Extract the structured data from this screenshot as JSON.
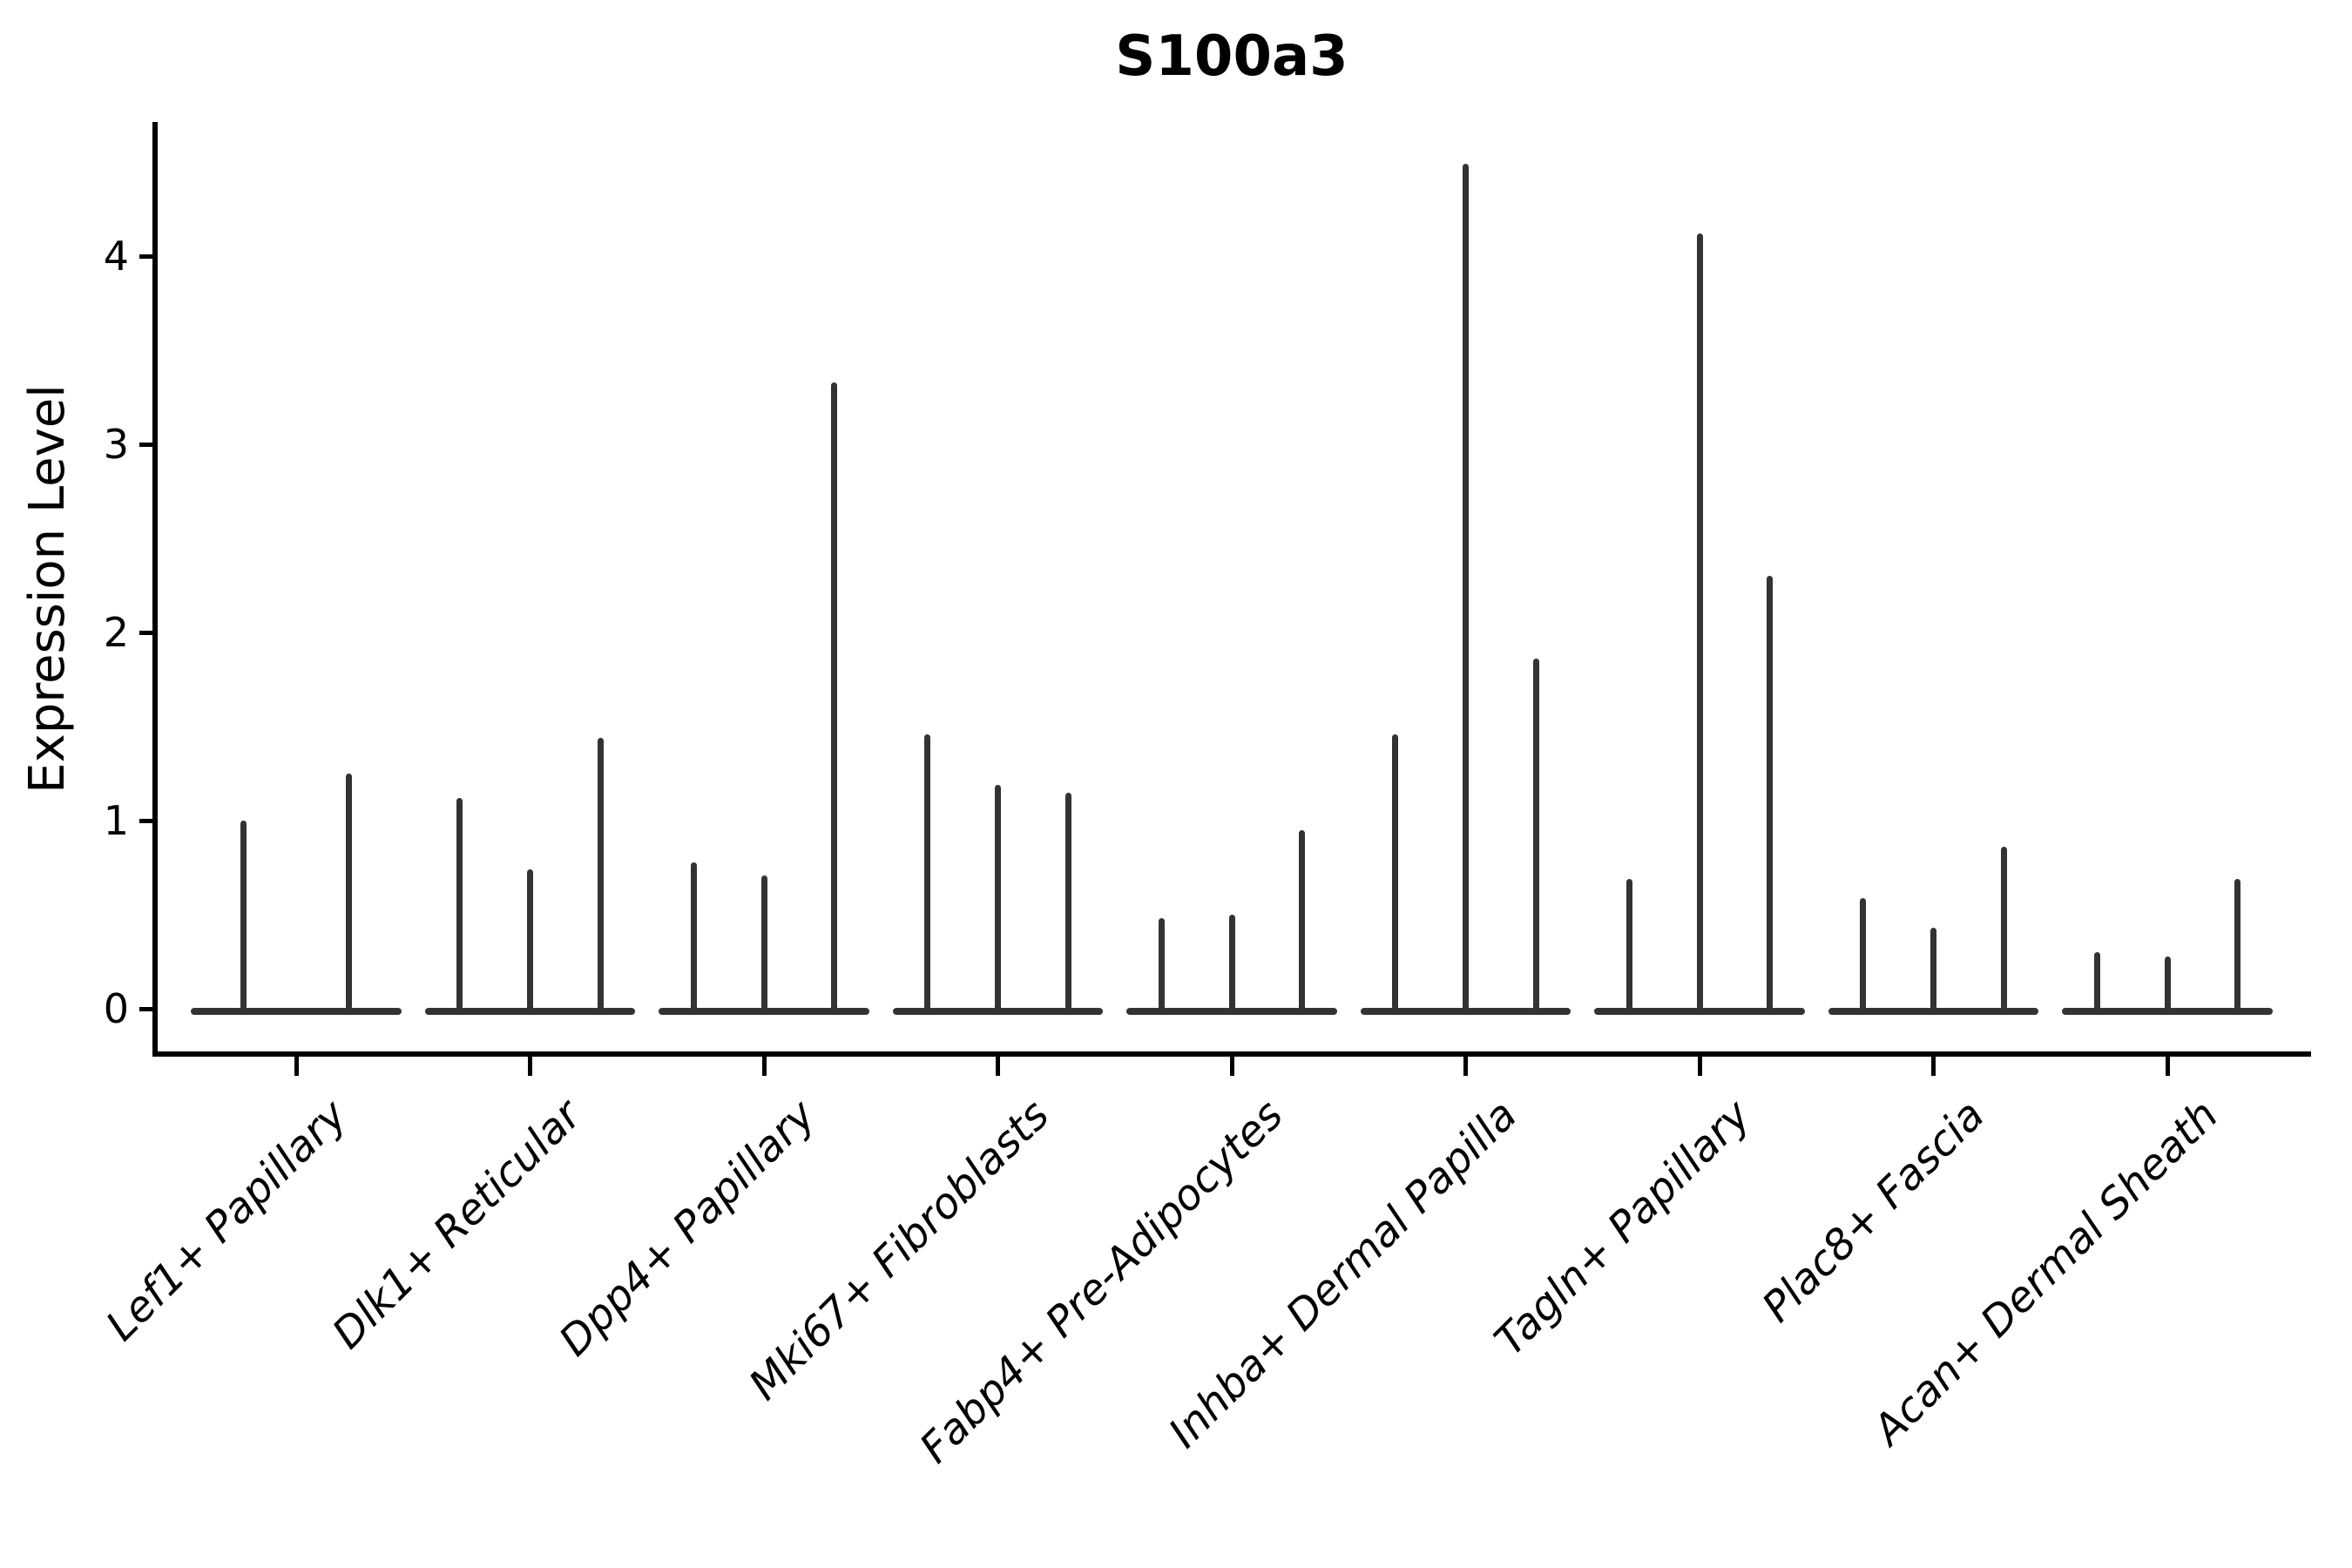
{
  "title": "S100a3",
  "y_axis": {
    "label": "Expression Level",
    "ticks": [
      0,
      1,
      2,
      3,
      4
    ]
  },
  "x_axis": {
    "label": "",
    "tick_rotation_deg": 45,
    "tick_style": "italic"
  },
  "colors": {
    "violin_line": "#333333",
    "axis": "#000000",
    "text": "#000000",
    "background": "#ffffff"
  },
  "chart_data": {
    "type": "violin",
    "title": "S100a3",
    "xlabel": "",
    "ylabel": "Expression Level",
    "ylim": [
      -0.25,
      4.71
    ],
    "yticks": [
      0,
      1,
      2,
      3,
      4
    ],
    "grid": false,
    "legend": null,
    "description": "Seurat-style violin plot of S100a3 expression; each cluster shows 2-3 needle-thin violins (wide base at 0 with a thin spike to the maximum expression value).",
    "categories": [
      "Lef1+ Papillary",
      "Dlk1+ Reticular",
      "Dpp4+ Papillary",
      "Mki67+ Fibroblasts",
      "Fabp4+ Pre-Adipocytes",
      "Inhba+ Dermal Papilla",
      "Tagln+ Papillary",
      "Plac8+ Fascia",
      "Acan+ Dermal Sheath"
    ],
    "series": [
      {
        "category": "Lef1+ Papillary",
        "spike_max_values": [
          1.0,
          1.25
        ]
      },
      {
        "category": "Dlk1+ Reticular",
        "spike_max_values": [
          1.12,
          0.74,
          1.44
        ]
      },
      {
        "category": "Dpp4+ Papillary",
        "spike_max_values": [
          0.78,
          0.71,
          3.33
        ]
      },
      {
        "category": "Mki67+ Fibroblasts",
        "spike_max_values": [
          1.46,
          1.19,
          1.15
        ]
      },
      {
        "category": "Fabp4+ Pre-Adipocytes",
        "spike_max_values": [
          0.48,
          0.5,
          0.95
        ]
      },
      {
        "category": "Inhba+ Dermal Papilla",
        "spike_max_values": [
          1.46,
          4.49,
          1.86
        ]
      },
      {
        "category": "Tagln+ Papillary",
        "spike_max_values": [
          0.69,
          4.12,
          2.3
        ]
      },
      {
        "category": "Plac8+ Fascia",
        "spike_max_values": [
          0.59,
          0.43,
          0.86
        ]
      },
      {
        "category": "Acan+ Dermal Sheath",
        "spike_max_values": [
          0.3,
          0.28,
          0.69
        ]
      }
    ]
  }
}
